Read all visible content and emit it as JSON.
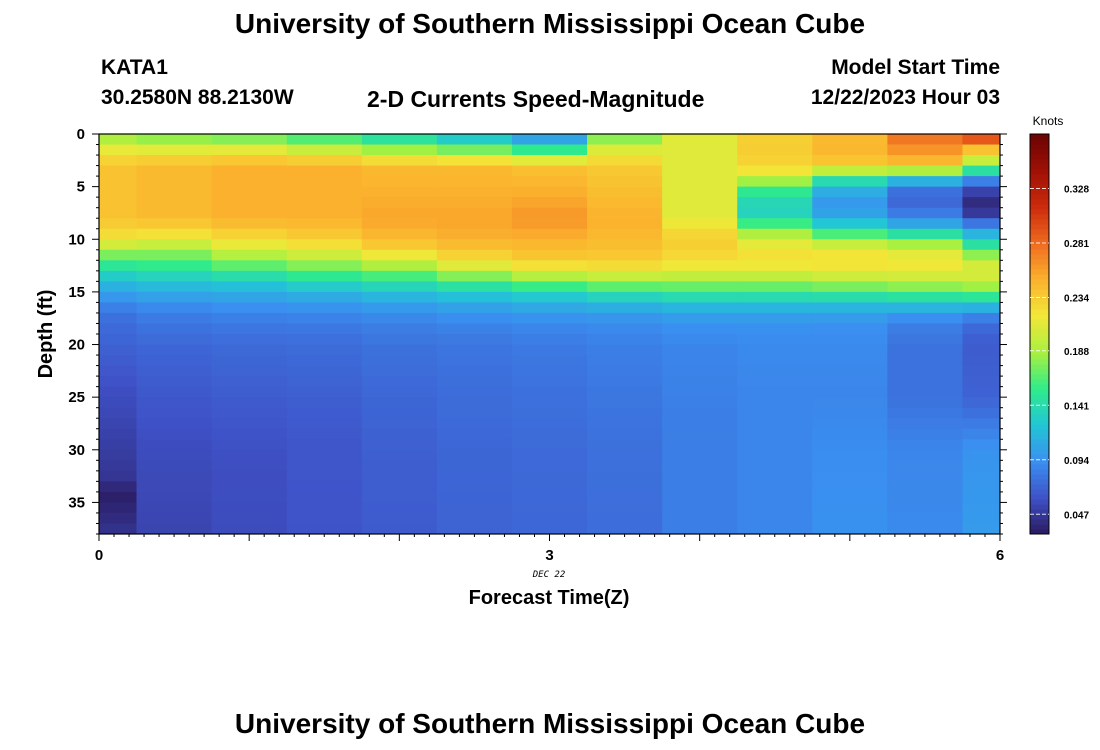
{
  "header": {
    "title": "University of Southern Mississippi Ocean Cube",
    "station": "KATA1",
    "coords": "30.2580N  88.2130W",
    "subtitle": "2-D Currents Speed-Magnitude",
    "model_start_label": "Model Start Time",
    "model_start_value": "12/22/2023 Hour 03",
    "footer_title": "University of Southern Mississippi Ocean Cube"
  },
  "chart_data": {
    "type": "heatmap",
    "title": "2-D Currents Speed-Magnitude",
    "xlabel": "Forecast Time(Z)",
    "ylabel": "Depth (ft)",
    "x_date_label": "DEC 22",
    "xlim": [
      0,
      6
    ],
    "ylim": [
      38,
      0
    ],
    "x_ticks": [
      0,
      3,
      6
    ],
    "y_ticks": [
      0,
      5,
      10,
      15,
      20,
      25,
      30,
      35
    ],
    "colorbar": {
      "label": "Knots",
      "range": [
        0.03,
        0.375
      ],
      "ticks": [
        0.047,
        0.094,
        0.141,
        0.188,
        0.234,
        0.281,
        0.328
      ],
      "colors": [
        "#2a1a5e",
        "#3f52c8",
        "#3a8ff0",
        "#22c5d6",
        "#2fec8a",
        "#a8f040",
        "#f2e838",
        "#fbb22e",
        "#ef6a20",
        "#cc2b0c",
        "#9f1005",
        "#6a0303"
      ]
    },
    "x_centers": [
      0.125,
      0.5,
      1.0,
      1.5,
      2.0,
      2.5,
      3.0,
      3.5,
      4.0,
      4.5,
      5.0,
      5.5,
      5.875
    ],
    "x_edges": [
      0,
      0.25,
      0.75,
      1.25,
      1.75,
      2.25,
      2.75,
      3.25,
      3.75,
      4.25,
      4.75,
      5.25,
      5.75,
      6.0
    ],
    "depth_profiles": [
      {
        "t": 0.125,
        "d": [
          0,
          1,
          3,
          8,
          10,
          11,
          12,
          13,
          14,
          15,
          16,
          17,
          18,
          20,
          24,
          27,
          30,
          33,
          34,
          36,
          38
        ],
        "v": [
          0.175,
          0.205,
          0.24,
          0.24,
          0.22,
          0.19,
          0.16,
          0.14,
          0.12,
          0.105,
          0.09,
          0.08,
          0.075,
          0.07,
          0.06,
          0.055,
          0.05,
          0.045,
          0.032,
          0.038,
          0.045
        ]
      },
      {
        "t": 0.5,
        "d": [
          0,
          1,
          3,
          8,
          10,
          11,
          12,
          13,
          14,
          15,
          16,
          17,
          18,
          20,
          25,
          30,
          38
        ],
        "v": [
          0.165,
          0.2,
          0.245,
          0.245,
          0.215,
          0.185,
          0.165,
          0.145,
          0.125,
          0.11,
          0.095,
          0.085,
          0.08,
          0.072,
          0.064,
          0.058,
          0.054
        ]
      },
      {
        "t": 1.0,
        "d": [
          0,
          1,
          3,
          8,
          10,
          11,
          12,
          13,
          14,
          15,
          16,
          17,
          18,
          20,
          25,
          30,
          38
        ],
        "v": [
          0.155,
          0.2,
          0.25,
          0.25,
          0.225,
          0.205,
          0.18,
          0.155,
          0.13,
          0.112,
          0.098,
          0.088,
          0.082,
          0.074,
          0.066,
          0.06,
          0.058
        ]
      },
      {
        "t": 1.5,
        "d": [
          0,
          1,
          3,
          8,
          10,
          11,
          12,
          13,
          14,
          15,
          16,
          17,
          18,
          20,
          25,
          30,
          38
        ],
        "v": [
          0.145,
          0.185,
          0.25,
          0.25,
          0.232,
          0.215,
          0.19,
          0.165,
          0.14,
          0.118,
          0.1,
          0.09,
          0.083,
          0.075,
          0.068,
          0.063,
          0.062
        ]
      },
      {
        "t": 2.0,
        "d": [
          0,
          1,
          3,
          8,
          10,
          11,
          12,
          13,
          14,
          15,
          16,
          17,
          18,
          20,
          25,
          30,
          38
        ],
        "v": [
          0.13,
          0.165,
          0.245,
          0.255,
          0.245,
          0.23,
          0.205,
          0.175,
          0.148,
          0.125,
          0.105,
          0.093,
          0.085,
          0.078,
          0.072,
          0.068,
          0.066
        ]
      },
      {
        "t": 2.5,
        "d": [
          0,
          1,
          3,
          8,
          10,
          12,
          13,
          14,
          15,
          16,
          17,
          18,
          20,
          25,
          30,
          38
        ],
        "v": [
          0.11,
          0.15,
          0.245,
          0.255,
          0.25,
          0.225,
          0.195,
          0.16,
          0.132,
          0.11,
          0.096,
          0.088,
          0.08,
          0.075,
          0.072,
          0.07
        ]
      },
      {
        "t": 3.0,
        "d": [
          0,
          1,
          3,
          8,
          10,
          12,
          13,
          14,
          15,
          16,
          17,
          18,
          20,
          25,
          30,
          38
        ],
        "v": [
          0.085,
          0.125,
          0.24,
          0.262,
          0.25,
          0.235,
          0.21,
          0.175,
          0.14,
          0.115,
          0.1,
          0.09,
          0.082,
          0.077,
          0.074,
          0.072
        ]
      },
      {
        "t": 3.5,
        "d": [
          0,
          1,
          3,
          8,
          10,
          12,
          13,
          14,
          15,
          16,
          17,
          18,
          20,
          25,
          30,
          38
        ],
        "v": [
          0.16,
          0.2,
          0.235,
          0.25,
          0.245,
          0.235,
          0.215,
          0.185,
          0.15,
          0.12,
          0.102,
          0.092,
          0.085,
          0.08,
          0.077,
          0.075
        ]
      },
      {
        "t": 4.0,
        "d": [
          0,
          3,
          8,
          10,
          12,
          13,
          14,
          15,
          16,
          17,
          18,
          20,
          25,
          30,
          38
        ],
        "v": [
          0.21,
          0.21,
          0.21,
          0.235,
          0.225,
          0.21,
          0.185,
          0.155,
          0.125,
          0.105,
          0.095,
          0.088,
          0.085,
          0.084,
          0.084
        ]
      },
      {
        "t": 4.5,
        "d": [
          0,
          1,
          3,
          4,
          5,
          6,
          7,
          8,
          9,
          10,
          11,
          12,
          13,
          14,
          15,
          16,
          17,
          18,
          20,
          25,
          30,
          38
        ],
        "v": [
          0.23,
          0.235,
          0.23,
          0.21,
          0.16,
          0.145,
          0.13,
          0.14,
          0.175,
          0.205,
          0.22,
          0.225,
          0.21,
          0.185,
          0.155,
          0.125,
          0.105,
          0.095,
          0.09,
          0.088,
          0.088,
          0.088
        ]
      },
      {
        "t": 5.0,
        "d": [
          0,
          1,
          3,
          4,
          5,
          6,
          7,
          8,
          9,
          10,
          11,
          12,
          13,
          14,
          15,
          16,
          17,
          18,
          20,
          25,
          30,
          38
        ],
        "v": [
          0.24,
          0.25,
          0.235,
          0.16,
          0.12,
          0.1,
          0.098,
          0.11,
          0.14,
          0.185,
          0.215,
          0.225,
          0.215,
          0.19,
          0.16,
          0.125,
          0.105,
          0.094,
          0.09,
          0.088,
          0.092,
          0.094
        ]
      },
      {
        "t": 5.5,
        "d": [
          0,
          1,
          3,
          4,
          5,
          6,
          7,
          8,
          9,
          10,
          11,
          12,
          13,
          14,
          15,
          16,
          17,
          18,
          20,
          25,
          30,
          38
        ],
        "v": [
          0.28,
          0.27,
          0.24,
          0.14,
          0.085,
          0.07,
          0.075,
          0.09,
          0.12,
          0.17,
          0.205,
          0.22,
          0.215,
          0.195,
          0.165,
          0.128,
          0.1,
          0.085,
          0.078,
          0.078,
          0.088,
          0.09
        ]
      },
      {
        "t": 5.875,
        "d": [
          0,
          1,
          3,
          4,
          5,
          6,
          7,
          8,
          9,
          10,
          11,
          12,
          13,
          14,
          15,
          16,
          17,
          18,
          20,
          25,
          30,
          38
        ],
        "v": [
          0.32,
          0.26,
          0.18,
          0.11,
          0.06,
          0.045,
          0.035,
          0.06,
          0.1,
          0.13,
          0.16,
          0.2,
          0.21,
          0.2,
          0.17,
          0.13,
          0.095,
          0.075,
          0.066,
          0.07,
          0.095,
          0.1
        ]
      }
    ]
  }
}
